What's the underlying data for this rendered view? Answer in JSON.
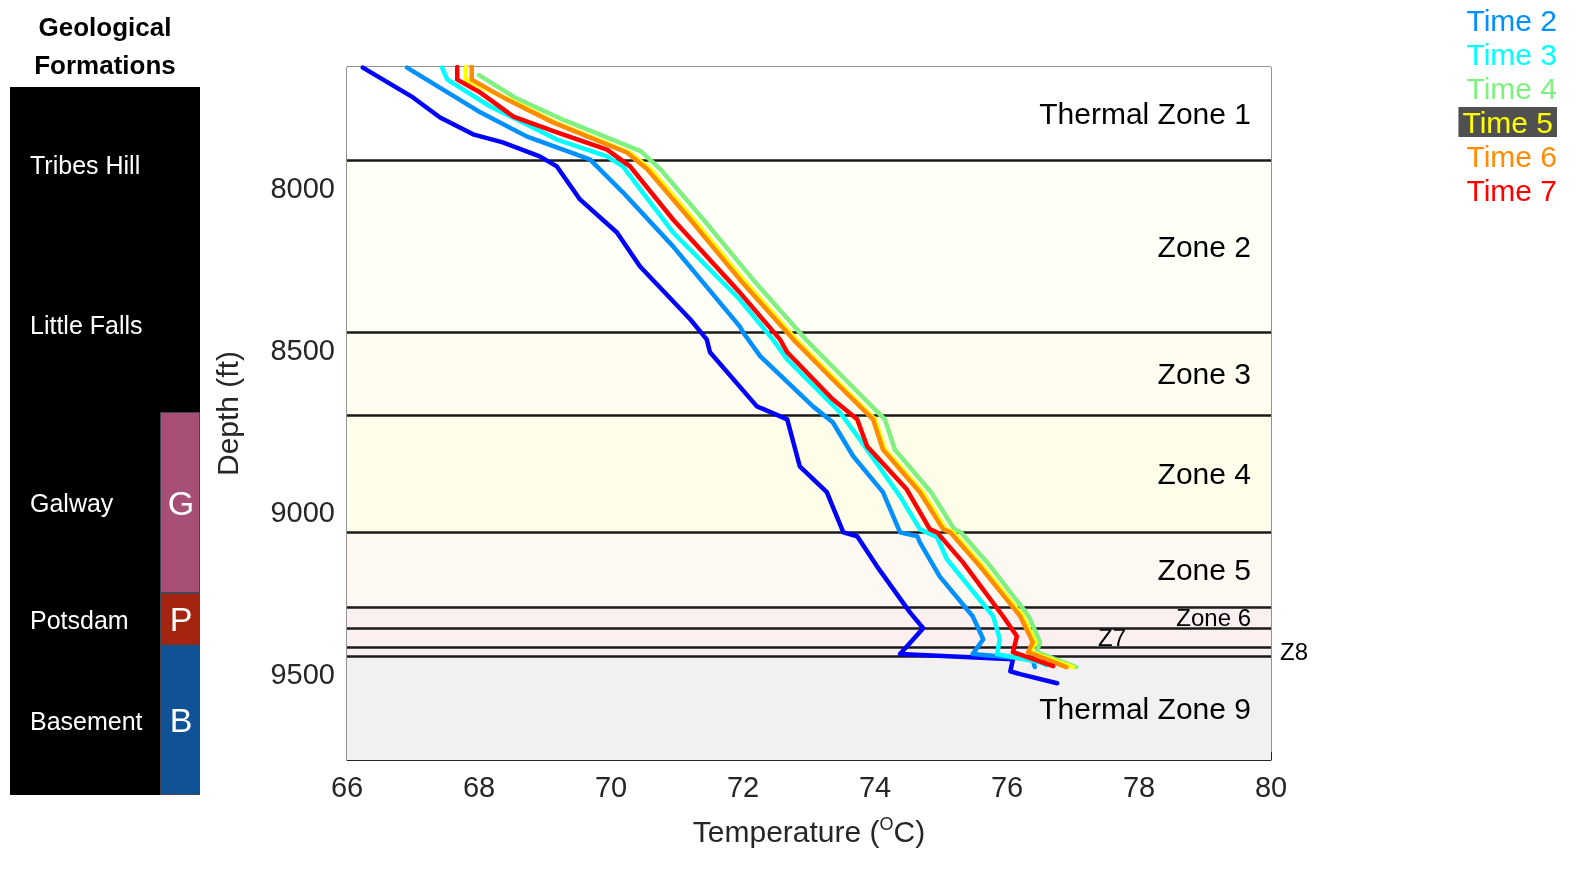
{
  "chart_data": {
    "type": "line",
    "xlabel": "Temperature ($^{O}$C)",
    "ylabel": "Depth (ft)",
    "xlim": [
      66,
      80
    ],
    "xticks": [
      66,
      68,
      70,
      72,
      74,
      76,
      78,
      80
    ],
    "ylim": [
      9765,
      7625
    ],
    "yticks": [
      8000,
      8500,
      9000,
      9500
    ],
    "grid": false,
    "legend": "top right",
    "marker": "none",
    "series": [
      {
        "color": "#0000ff",
        "x": [
          66.24,
          67.0,
          67.41,
          67.91,
          68.36,
          68.92,
          69.18,
          69.53,
          70.09,
          70.44,
          71.2,
          71.45,
          71.5,
          72.21,
          72.67,
          72.86,
          73.27,
          73.52,
          73.73,
          74.03,
          74.53,
          74.73,
          74.38,
          76.09,
          76.05,
          76.2,
          76.76
        ],
        "values": [
          7627,
          7719,
          7781,
          7833,
          7858,
          7901,
          7932,
          8034,
          8136,
          8241,
          8404,
          8466,
          8506,
          8673,
          8713,
          8858,
          8938,
          9062,
          9074,
          9167,
          9309,
          9358,
          9438,
          9454,
          9491,
          9500,
          9528
        ]
      },
      {
        "name": "Time 2",
        "color": "#0090ff",
        "x": [
          66.91,
          68.02,
          68.73,
          69.68,
          70.18,
          70.94,
          71.95,
          72.0,
          72.26,
          73.06,
          73.36,
          73.67,
          74.12,
          74.38,
          74.64,
          74.68,
          74.98,
          75.48,
          75.64,
          75.48,
          76.39,
          76.42
        ],
        "values": [
          7627,
          7765,
          7840,
          7910,
          8012,
          8179,
          8426,
          8444,
          8518,
          8673,
          8722,
          8827,
          8938,
          9062,
          9074,
          9093,
          9198,
          9321,
          9392,
          9438,
          9454,
          9478
        ]
      },
      {
        "name": "Time 3",
        "color": "#00ffff",
        "x": [
          67.44,
          67.52,
          68.17,
          69.18,
          69.94,
          70.18,
          70.94,
          71.95,
          72.45,
          72.67,
          73.47,
          73.77,
          74.38,
          74.68,
          74.94,
          75.09,
          75.79,
          75.89,
          75.85,
          76.5,
          76.6
        ],
        "values": [
          7627,
          7664,
          7747,
          7849,
          7901,
          7932,
          8136,
          8343,
          8466,
          8528,
          8692,
          8775,
          8951,
          9052,
          9077,
          9145,
          9321,
          9392,
          9438,
          9463,
          9472
        ]
      },
      {
        "name": "Time 4",
        "color": "#80f080",
        "x": [
          68.0,
          68.55,
          69.3,
          70.45,
          70.75,
          71.4,
          72.15,
          72.95,
          73.55,
          74.15,
          74.3,
          74.85,
          75.2,
          75.3,
          75.75,
          76.33,
          76.5,
          76.45,
          77.05
        ],
        "values": [
          7650,
          7720,
          7790,
          7885,
          7941,
          8096,
          8281,
          8466,
          8590,
          8713,
          8806,
          8938,
          9052,
          9062,
          9167,
          9321,
          9401,
          9432,
          9478
        ]
      },
      {
        "name": "Time 5",
        "color": "#ffff00",
        "x": [
          67.8,
          67.8,
          68.45,
          69.15,
          70.28,
          70.6,
          71.25,
          72.0,
          72.8,
          73.4,
          74.0,
          74.15,
          74.72,
          75.07,
          75.18,
          75.63,
          76.24,
          76.43,
          76.36,
          77.0
        ],
        "values": [
          7625,
          7664,
          7725,
          7796,
          7889,
          7941,
          8096,
          8281,
          8466,
          8590,
          8713,
          8806,
          8938,
          9052,
          9062,
          9167,
          9321,
          9401,
          9432,
          9478
        ]
      },
      {
        "name": "Time 6",
        "color": "#ff8c00",
        "x": [
          67.89,
          67.89,
          68.42,
          69.12,
          70.24,
          70.55,
          71.2,
          71.95,
          72.76,
          73.36,
          73.97,
          74.12,
          74.68,
          75.03,
          75.14,
          75.59,
          76.2,
          76.39,
          76.32,
          76.9
        ],
        "values": [
          7625,
          7664,
          7725,
          7796,
          7889,
          7941,
          8096,
          8281,
          8466,
          8590,
          8713,
          8806,
          8938,
          9052,
          9062,
          9167,
          9321,
          9401,
          9432,
          9478
        ]
      },
      {
        "name": "Time 7",
        "color": "#ff0000",
        "x": [
          67.67,
          67.67,
          68.02,
          68.52,
          69.18,
          69.94,
          70.29,
          70.94,
          71.95,
          72.56,
          72.67,
          73.36,
          73.73,
          73.88,
          74.48,
          74.83,
          74.94,
          75.33,
          75.94,
          76.15,
          76.09,
          76.7
        ],
        "values": [
          7625,
          7664,
          7704,
          7778,
          7827,
          7880,
          7932,
          8096,
          8321,
          8466,
          8506,
          8651,
          8713,
          8796,
          8929,
          9052,
          9062,
          9154,
          9321,
          9383,
          9432,
          9475
        ]
      }
    ],
    "bands": [
      {
        "axis": "y",
        "from": 7625,
        "to": 7914,
        "label": "Thermal Zone 1",
        "color": "#ffffff"
      },
      {
        "axis": "y",
        "from": 7914,
        "to": 8444,
        "label": "Zone 2",
        "color": "#fffef7"
      },
      {
        "axis": "y",
        "from": 8444,
        "to": 8701,
        "label": "Zone 3",
        "color": "#fffdf0"
      },
      {
        "axis": "y",
        "from": 8701,
        "to": 9062,
        "label": "Zone 4",
        "color": "#fefde9"
      },
      {
        "axis": "y",
        "from": 9062,
        "to": 9293,
        "label": "Zone 5",
        "color": "#fdf8f2"
      },
      {
        "axis": "y",
        "from": 9293,
        "to": 9358,
        "label": "Zone 6",
        "color": "#fbf0f0"
      },
      {
        "axis": "y",
        "from": 9358,
        "to": 9417,
        "label": "Z7",
        "color": "#fbeff0"
      },
      {
        "axis": "y",
        "from": 9417,
        "to": 9444,
        "label": "Z8",
        "color": "#f7eef0"
      },
      {
        "axis": "y",
        "from": 9444,
        "to": 9765,
        "label": "Thermal Zone 9",
        "color": "#f3f0f2"
      }
    ],
    "ref_lines": [
      {
        "axis": "y",
        "value": 7914,
        "color": "#1a1a1a"
      },
      {
        "axis": "y",
        "value": 8444,
        "color": "#1a1a1a"
      },
      {
        "axis": "y",
        "value": 8701,
        "color": "#1a1a1a"
      },
      {
        "axis": "y",
        "value": 9062,
        "color": "#1a1a1a"
      },
      {
        "axis": "y",
        "value": 9293,
        "color": "#1a1a1a"
      },
      {
        "axis": "y",
        "value": 9358,
        "color": "#1a1a1a"
      },
      {
        "axis": "y",
        "value": 9417,
        "color": "#1a1a1a"
      },
      {
        "axis": "y",
        "value": 9444,
        "color": "#1a1a1a"
      }
    ],
    "annotations": [
      "Geological Formations",
      "Tribes Hill",
      "Little Falls",
      "Galway",
      "Potsdam",
      "Basement",
      "G",
      "P",
      "B"
    ]
  }
}
